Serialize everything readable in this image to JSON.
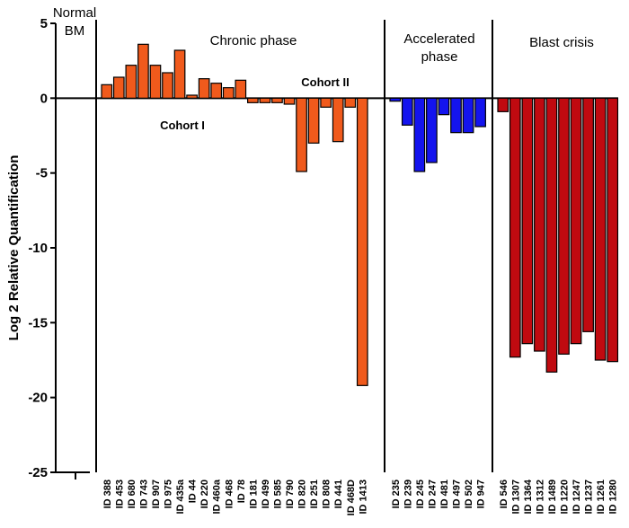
{
  "chart_data": {
    "type": "bar",
    "title": "",
    "xlabel": "",
    "ylabel": "Log 2 Relative Quantification",
    "ylim": [
      -25,
      5
    ],
    "yticks": [
      5,
      0,
      -5,
      -10,
      -15,
      -20,
      -25
    ],
    "grid": false,
    "sections": [
      {
        "name": "Normal BM",
        "label_lines": [
          "Normal",
          "BM"
        ]
      },
      {
        "name": "Chronic phase",
        "label_lines": [
          "Chronic phase"
        ]
      },
      {
        "name": "Accelerated phase",
        "label_lines": [
          "Accelerated",
          "phase"
        ]
      },
      {
        "name": "Blast crisis",
        "label_lines": [
          "Blast crisis"
        ]
      }
    ],
    "cohort_labels": [
      "Cohort I",
      "Cohort II"
    ],
    "series": [
      {
        "name": "Chronic phase",
        "color": "#f05a1c",
        "categories": [
          "ID 388",
          "ID 453",
          "ID 680",
          "ID 743",
          "ID 907",
          "ID 975",
          "ID 435a",
          "ID 44",
          "ID 220",
          "ID 460a",
          "ID 468",
          "ID 78",
          "ID 181",
          "ID 499",
          "ID 585",
          "ID 790",
          "ID 820",
          "ID 251",
          "ID 808",
          "ID 441",
          "ID 468D",
          "ID 1413"
        ],
        "values": [
          0.9,
          1.4,
          2.2,
          3.6,
          2.2,
          1.7,
          3.2,
          0.2,
          1.3,
          1.0,
          0.7,
          1.2,
          -0.3,
          -0.3,
          -0.3,
          -0.4,
          -4.9,
          -3.0,
          -0.6,
          -2.9,
          -0.6,
          -19.2
        ]
      },
      {
        "name": "Accelerated phase",
        "color": "#1414ee",
        "categories": [
          "ID 235",
          "ID 239",
          "ID 245",
          "ID 247",
          "ID 481",
          "ID 497",
          "ID 502",
          "ID 947"
        ],
        "values": [
          -0.2,
          -1.8,
          -4.9,
          -4.3,
          -1.1,
          -2.3,
          -2.3,
          -1.9
        ]
      },
      {
        "name": "Blast crisis",
        "color": "#c00a10",
        "categories": [
          "ID 546",
          "ID 1307",
          "ID 1364",
          "ID 1312",
          "ID 1489",
          "ID 1220",
          "ID 1247",
          "ID 1237",
          "ID 1261",
          "ID 1280"
        ],
        "values": [
          -0.9,
          -17.3,
          -16.4,
          -16.9,
          -18.3,
          -17.1,
          -16.4,
          -15.6,
          -17.5,
          -17.6
        ]
      }
    ]
  }
}
